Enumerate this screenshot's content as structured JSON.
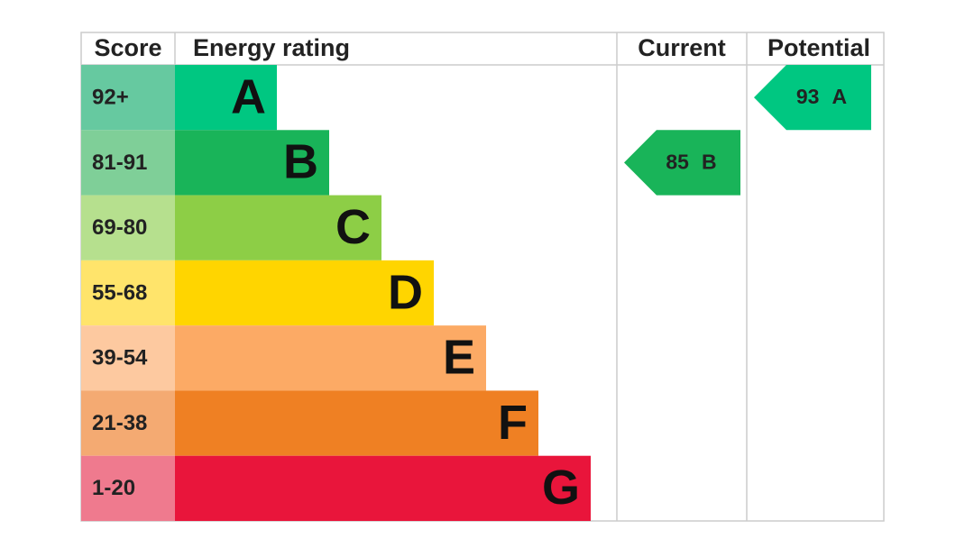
{
  "header": {
    "score": "Score",
    "rating": "Energy rating",
    "current": "Current",
    "potential": "Potential"
  },
  "bands": [
    {
      "score": "92+",
      "letter": "A"
    },
    {
      "score": "81-91",
      "letter": "B"
    },
    {
      "score": "69-80",
      "letter": "C"
    },
    {
      "score": "55-68",
      "letter": "D"
    },
    {
      "score": "39-54",
      "letter": "E"
    },
    {
      "score": "21-38",
      "letter": "F"
    },
    {
      "score": "1-20",
      "letter": "G"
    }
  ],
  "current": {
    "value": 85,
    "letter": "B"
  },
  "potential": {
    "value": 93,
    "letter": "A"
  }
}
